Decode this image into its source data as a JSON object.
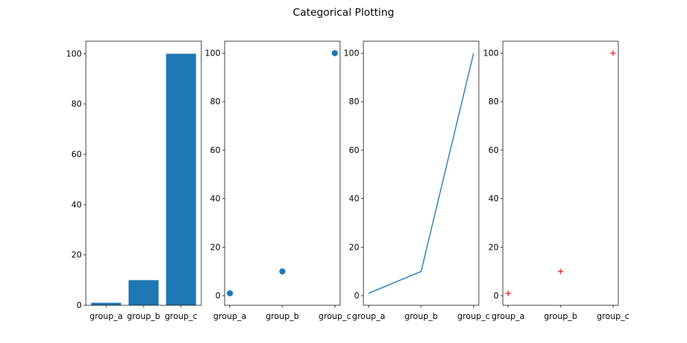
{
  "figure": {
    "title": "Categorical Plotting"
  },
  "chart_data": [
    {
      "type": "bar",
      "categories": [
        "group_a",
        "group_b",
        "group_c"
      ],
      "values": [
        1,
        10,
        100
      ],
      "ylim": [
        0,
        105
      ],
      "yticks": [
        0,
        20,
        40,
        60,
        80,
        100
      ],
      "color": "#1f77b4",
      "grid": false
    },
    {
      "type": "scatter",
      "categories": [
        "group_a",
        "group_b",
        "group_c"
      ],
      "values": [
        1,
        10,
        100
      ],
      "ylim": [
        -3.95,
        104.95
      ],
      "yticks": [
        0,
        20,
        40,
        60,
        80,
        100
      ],
      "color": "#1f77b4",
      "marker": "circle",
      "grid": false
    },
    {
      "type": "line",
      "categories": [
        "group_a",
        "group_b",
        "group_c"
      ],
      "values": [
        1,
        10,
        100
      ],
      "ylim": [
        -3.95,
        104.95
      ],
      "yticks": [
        0,
        20,
        40,
        60,
        80,
        100
      ],
      "color": "#1f77b4",
      "grid": false
    },
    {
      "type": "scatter",
      "categories": [
        "group_a",
        "group_b",
        "group_c"
      ],
      "values": [
        1,
        10,
        100
      ],
      "ylim": [
        -3.95,
        104.95
      ],
      "yticks": [
        0,
        20,
        40,
        60,
        80,
        100
      ],
      "color": "#ff0000",
      "marker": "plus",
      "grid": false
    }
  ]
}
